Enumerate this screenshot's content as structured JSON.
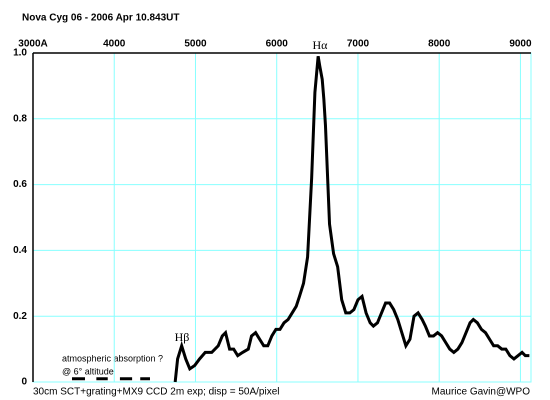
{
  "chart_data": {
    "type": "line",
    "title": "Nova Cyg 06  -  2006 Apr  10.843UT",
    "footer_left": "30cm SCT+grating+MX9 CCD  2m exp;  disp = 50A/pixel",
    "footer_right": "Maurice Gavin@WPO",
    "annotations": [
      "Hβ",
      "Hα",
      "atmospheric absorption ?",
      "@ 6° altitude"
    ],
    "xlim": [
      3000,
      9130
    ],
    "ylim": [
      0,
      1
    ],
    "xticks": [
      {
        "value": 3000,
        "label": "3000A"
      },
      4000,
      5000,
      6000,
      7000,
      8000,
      9000
    ],
    "yticks": [
      0,
      0.2,
      0.4,
      0.6,
      0.8,
      {
        "value": 1,
        "label": "1.0"
      }
    ],
    "grid": true,
    "series": [
      {
        "color": "#000000",
        "x": [
          3480,
          3640,
          3700,
          3780,
          3920,
          4000,
          4070,
          4220,
          4260,
          4320,
          4440,
          4600,
          4750,
          4780,
          4830,
          4880,
          4930,
          4990,
          5050,
          5120,
          5200,
          5280,
          5330,
          5370,
          5420,
          5470,
          5520,
          5580,
          5650,
          5690,
          5740,
          5790,
          5840,
          5890,
          5940,
          5990,
          6040,
          6090,
          6140,
          6190,
          6240,
          6280,
          6330,
          6380,
          6430,
          6470,
          6510,
          6530,
          6560,
          6580,
          6600,
          6630,
          6650,
          6700,
          6750,
          6800,
          6850,
          6900,
          6950,
          7000,
          7050,
          7100,
          7150,
          7190,
          7240,
          7290,
          7340,
          7390,
          7440,
          7490,
          7540,
          7590,
          7640,
          7690,
          7740,
          7790,
          7830,
          7880,
          7930,
          7980,
          8030,
          8080,
          8130,
          8180,
          8230,
          8280,
          8330,
          8380,
          8420,
          8470,
          8520,
          8570,
          8620,
          8670,
          8720,
          8770,
          8820,
          8870,
          8920,
          8970,
          9020,
          9060,
          9110
        ],
        "values": [
          0.01,
          0.01,
          null,
          0.01,
          0.01,
          null,
          0.01,
          0.01,
          null,
          0.01,
          0.01,
          null,
          0.0,
          0.07,
          0.11,
          0.07,
          0.04,
          0.05,
          0.07,
          0.09,
          0.09,
          0.11,
          0.14,
          0.15,
          0.1,
          0.1,
          0.08,
          0.09,
          0.1,
          0.14,
          0.15,
          0.13,
          0.11,
          0.11,
          0.14,
          0.16,
          0.16,
          0.18,
          0.19,
          0.21,
          0.23,
          0.26,
          0.3,
          0.38,
          0.62,
          0.88,
          0.99,
          0.96,
          0.92,
          0.86,
          0.78,
          0.6,
          0.48,
          0.39,
          0.35,
          0.25,
          0.21,
          0.21,
          0.22,
          0.25,
          0.26,
          0.21,
          0.18,
          0.17,
          0.18,
          0.21,
          0.24,
          0.24,
          0.22,
          0.19,
          0.15,
          0.11,
          0.13,
          0.2,
          0.21,
          0.19,
          0.17,
          0.14,
          0.14,
          0.15,
          0.14,
          0.12,
          0.1,
          0.09,
          0.1,
          0.12,
          0.15,
          0.18,
          0.19,
          0.18,
          0.16,
          0.15,
          0.13,
          0.11,
          0.11,
          0.1,
          0.1,
          0.08,
          0.07,
          0.08,
          0.09,
          0.08,
          0.08
        ]
      }
    ]
  }
}
